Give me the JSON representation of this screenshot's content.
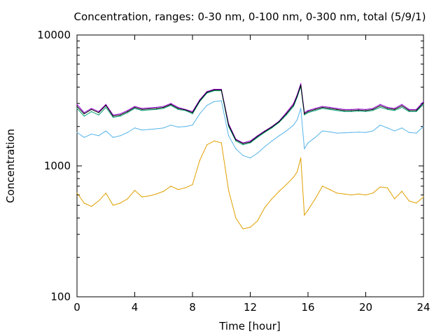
{
  "chart_data": {
    "type": "line",
    "title": "Concentration, ranges: 0-30 nm, 0-100 nm, 0-300 nm, total (5/9/1)",
    "xlabel": "Time [hour]",
    "ylabel": "Concentration",
    "xlim": [
      0,
      24
    ],
    "ylim": [
      100,
      10000
    ],
    "y_scale": "log",
    "grid": false,
    "x_ticks": [
      "0",
      "4",
      "8",
      "12",
      "16",
      "20",
      "24"
    ],
    "x_tick_values": [
      0,
      4,
      8,
      12,
      16,
      20,
      24
    ],
    "y_ticks": [
      "100",
      "1000",
      "10000"
    ],
    "y_tick_values": [
      100,
      1000,
      10000
    ],
    "x": [
      0,
      0.5,
      1,
      1.5,
      2,
      2.5,
      3,
      3.5,
      4,
      4.5,
      5,
      5.5,
      6,
      6.5,
      7,
      7.5,
      8,
      8.5,
      9,
      9.5,
      10,
      10.5,
      11,
      11.5,
      12,
      12.5,
      13,
      13.5,
      14,
      14.5,
      15,
      15.25,
      15.5,
      15.75,
      16,
      16.5,
      17,
      17.5,
      18,
      18.5,
      19,
      19.5,
      20,
      20.5,
      21,
      21.5,
      22,
      22.5,
      23,
      23.5,
      24
    ],
    "series": [
      {
        "color": "#e0a000",
        "values": [
          620,
          520,
          490,
          540,
          620,
          500,
          520,
          560,
          650,
          580,
          590,
          610,
          640,
          700,
          660,
          680,
          720,
          1100,
          1450,
          1550,
          1500,
          650,
          400,
          330,
          340,
          380,
          480,
          560,
          640,
          720,
          820,
          900,
          1150,
          420,
          460,
          560,
          700,
          660,
          620,
          610,
          600,
          610,
          600,
          620,
          690,
          680,
          560,
          640,
          540,
          520,
          580
        ]
      },
      {
        "color": "#56b4e9",
        "values": [
          1800,
          1650,
          1750,
          1700,
          1850,
          1650,
          1700,
          1800,
          1950,
          1880,
          1900,
          1920,
          1950,
          2050,
          1980,
          2000,
          2050,
          2500,
          2900,
          3100,
          3150,
          1700,
          1350,
          1200,
          1150,
          1250,
          1400,
          1550,
          1700,
          1850,
          2050,
          2250,
          2750,
          1350,
          1500,
          1650,
          1850,
          1820,
          1780,
          1790,
          1800,
          1810,
          1800,
          1850,
          2050,
          1950,
          1850,
          1950,
          1800,
          1780,
          2000
        ]
      },
      {
        "color": "#009e73",
        "values": [
          2750,
          2400,
          2600,
          2450,
          2800,
          2350,
          2400,
          2550,
          2750,
          2650,
          2680,
          2700,
          2750,
          2900,
          2700,
          2650,
          2500,
          3100,
          3600,
          3750,
          3750,
          2000,
          1550,
          1450,
          1500,
          1650,
          1800,
          1950,
          2150,
          2450,
          2850,
          3350,
          4050,
          2450,
          2550,
          2650,
          2750,
          2700,
          2650,
          2600,
          2600,
          2620,
          2600,
          2650,
          2800,
          2700,
          2650,
          2800,
          2600,
          2600,
          2950
        ]
      },
      {
        "color": "#9400d3",
        "values": [
          2950,
          2550,
          2750,
          2600,
          2950,
          2450,
          2500,
          2650,
          2850,
          2750,
          2780,
          2800,
          2850,
          3000,
          2800,
          2700,
          2600,
          3200,
          3700,
          3850,
          3850,
          2100,
          1600,
          1500,
          1550,
          1700,
          1850,
          2000,
          2200,
          2550,
          3000,
          3500,
          4250,
          2550,
          2650,
          2750,
          2850,
          2800,
          2750,
          2700,
          2700,
          2720,
          2700,
          2750,
          2950,
          2800,
          2750,
          2950,
          2700,
          2700,
          3100
        ]
      },
      {
        "color": "#000000",
        "values": [
          2850,
          2500,
          2700,
          2550,
          2900,
          2400,
          2450,
          2600,
          2800,
          2700,
          2730,
          2750,
          2800,
          2950,
          2750,
          2680,
          2550,
          3150,
          3650,
          3800,
          3800,
          2050,
          1580,
          1480,
          1520,
          1680,
          1830,
          1980,
          2180,
          2500,
          2920,
          3420,
          4150,
          2500,
          2600,
          2700,
          2800,
          2750,
          2700,
          2650,
          2650,
          2670,
          2650,
          2700,
          2880,
          2750,
          2700,
          2880,
          2650,
          2650,
          3030
        ]
      }
    ]
  }
}
